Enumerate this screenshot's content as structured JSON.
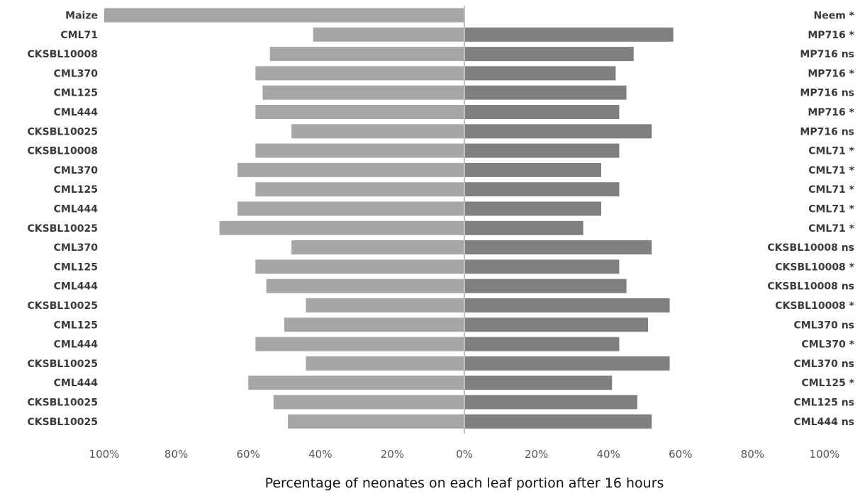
{
  "chart_data": {
    "type": "bar",
    "orientation": "horizontal-diverging",
    "title": "",
    "xlabel": "Percentage of neonates on each leaf portion after 16 hours",
    "xlim": [
      -100,
      100
    ],
    "x_tick_labels": [
      "100%",
      "80%",
      "60%",
      "40%",
      "20%",
      "0%",
      "20%",
      "40%",
      "60%",
      "80%",
      "100%"
    ],
    "grid": false,
    "colors": {
      "left": "#a6a6a6",
      "right": "#7f7f7f",
      "axis": "#bfbfbf"
    },
    "series": [
      {
        "side": "left",
        "values": [
          100,
          42,
          54,
          58,
          56,
          58,
          48,
          58,
          63,
          58,
          63,
          68,
          48,
          58,
          55,
          44,
          50,
          58,
          44,
          60,
          53,
          49
        ]
      },
      {
        "side": "right",
        "values": [
          0,
          58,
          47,
          42,
          45,
          43,
          52,
          43,
          38,
          43,
          38,
          33,
          52,
          43,
          45,
          57,
          51,
          43,
          57,
          41,
          48,
          52
        ]
      }
    ],
    "left_labels": [
      "Maize",
      "CML71",
      "CKSBL10008",
      "CML370",
      "CML125",
      "CML444",
      "CKSBL10025",
      "CKSBL10008",
      "CML370",
      "CML125",
      "CML444",
      "CKSBL10025",
      "CML370",
      "CML125",
      "CML444",
      "CKSBL10025",
      "CML125",
      "CML444",
      "CKSBL10025",
      "CML444",
      "CKSBL10025",
      "CKSBL10025"
    ],
    "right_labels": [
      "Neem *",
      "MP716 *",
      "MP716 ns",
      "MP716 *",
      "MP716 ns",
      "MP716 *",
      "MP716 ns",
      "CML71 *",
      "CML71 *",
      "CML71 *",
      "CML71 *",
      "CML71 *",
      "CKSBL10008 ns",
      "CKSBL10008 *",
      "CKSBL10008 ns",
      "CKSBL10008 *",
      "CML370 ns",
      "CML370 *",
      "CML370 ns",
      "CML125 *",
      "CML125 ns",
      "CML444 ns"
    ]
  }
}
